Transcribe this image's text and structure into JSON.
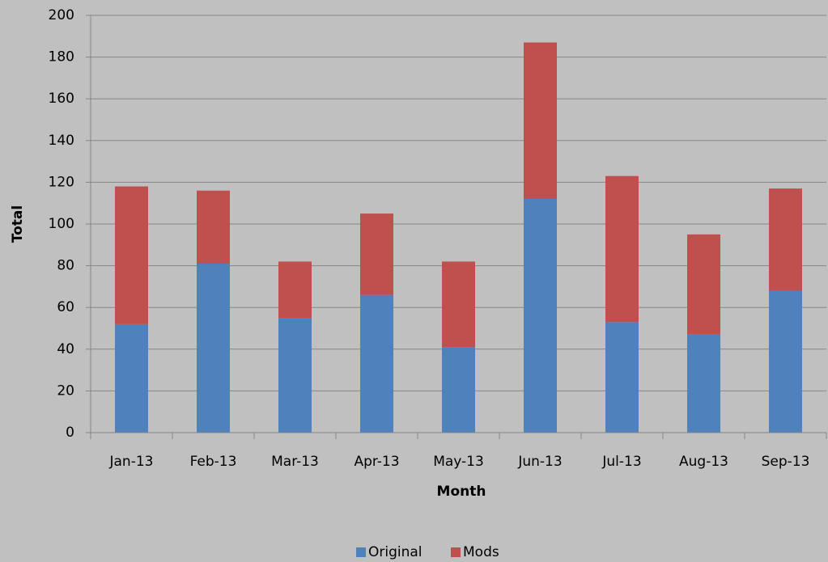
{
  "chart_data": {
    "type": "stacked_bar",
    "x_label": "Month",
    "y_label": "Total",
    "categories": [
      "Jan-13",
      "Feb-13",
      "Mar-13",
      "Apr-13",
      "May-13",
      "Jun-13",
      "Jul-13",
      "Aug-13",
      "Sep-13"
    ],
    "series": [
      {
        "name": "Original",
        "color": "#4f81bd",
        "values": [
          52,
          81,
          55,
          66,
          41,
          112,
          53,
          47,
          68
        ]
      },
      {
        "name": "Mods",
        "color": "#c0504d",
        "values": [
          66,
          35,
          27,
          39,
          41,
          75,
          70,
          48,
          49
        ]
      }
    ],
    "ylim": [
      0,
      200
    ],
    "yticks": [
      0,
      20,
      40,
      60,
      80,
      100,
      120,
      140,
      160,
      180,
      200
    ],
    "grid": true,
    "legend": "bottom"
  }
}
